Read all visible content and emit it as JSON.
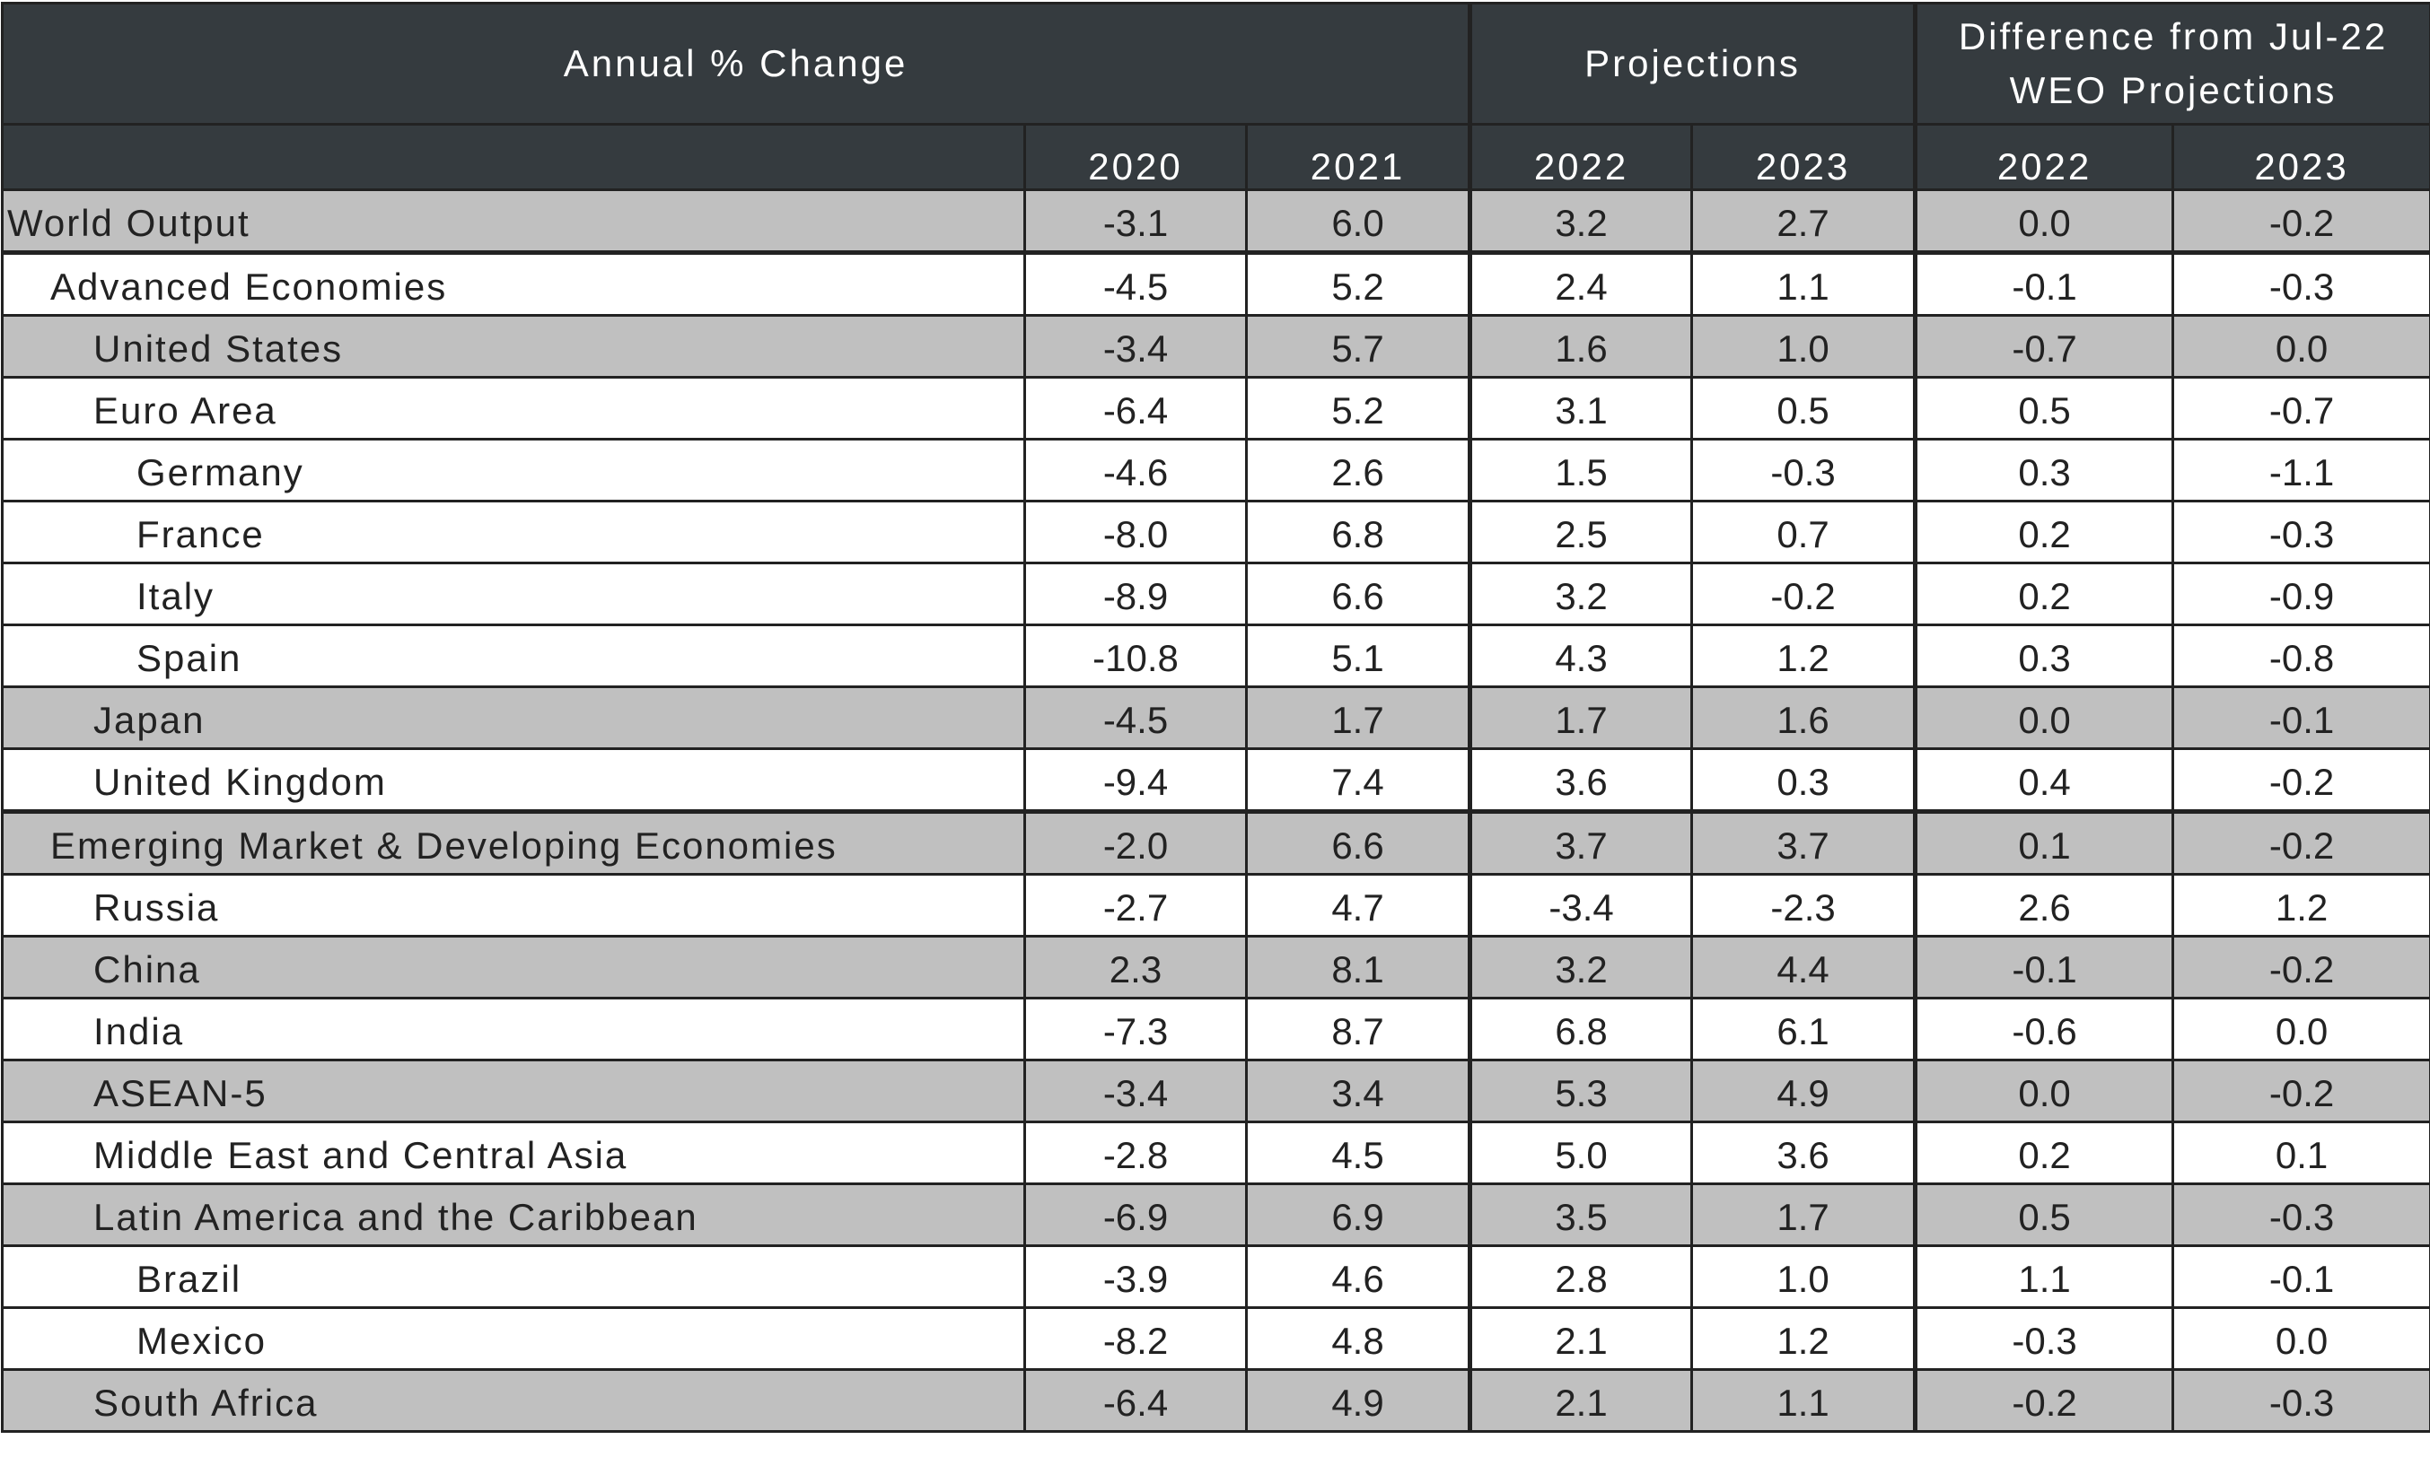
{
  "header": {
    "groups": [
      "Annual % Change",
      "Projections",
      "Difference from Jul-22 WEO Projections"
    ],
    "years": [
      "2020",
      "2021",
      "2022",
      "2023",
      "2022",
      "2023"
    ]
  },
  "table": {
    "rows": [
      [
        "World Output",
        "-3.1",
        "6.0",
        "3.2",
        "2.7",
        "0.0",
        "-0.2"
      ],
      [
        "Advanced Economies",
        "-4.5",
        "5.2",
        "2.4",
        "1.1",
        "-0.1",
        "-0.3"
      ],
      [
        "United States",
        "-3.4",
        "5.7",
        "1.6",
        "1.0",
        "-0.7",
        "0.0"
      ],
      [
        "Euro Area",
        "-6.4",
        "5.2",
        "3.1",
        "0.5",
        "0.5",
        "-0.7"
      ],
      [
        "Germany",
        "-4.6",
        "2.6",
        "1.5",
        "-0.3",
        "0.3",
        "-1.1"
      ],
      [
        "France",
        "-8.0",
        "6.8",
        "2.5",
        "0.7",
        "0.2",
        "-0.3"
      ],
      [
        "Italy",
        "-8.9",
        "6.6",
        "3.2",
        "-0.2",
        "0.2",
        "-0.9"
      ],
      [
        "Spain",
        "-10.8",
        "5.1",
        "4.3",
        "1.2",
        "0.3",
        "-0.8"
      ],
      [
        "Japan",
        "-4.5",
        "1.7",
        "1.7",
        "1.6",
        "0.0",
        "-0.1"
      ],
      [
        "United Kingdom",
        "-9.4",
        "7.4",
        "3.6",
        "0.3",
        "0.4",
        "-0.2"
      ],
      [
        "Emerging Market & Developing Economies",
        "-2.0",
        "6.6",
        "3.7",
        "3.7",
        "0.1",
        "-0.2"
      ],
      [
        "Russia",
        "-2.7",
        "4.7",
        "-3.4",
        "-2.3",
        "2.6",
        "1.2"
      ],
      [
        "China",
        "2.3",
        "8.1",
        "3.2",
        "4.4",
        "-0.1",
        "-0.2"
      ],
      [
        "India",
        "-7.3",
        "8.7",
        "6.8",
        "6.1",
        "-0.6",
        "0.0"
      ],
      [
        "ASEAN-5",
        "-3.4",
        "3.4",
        "5.3",
        "4.9",
        "0.0",
        "-0.2"
      ],
      [
        "Middle East and Central Asia",
        "-2.8",
        "4.5",
        "5.0",
        "3.6",
        "0.2",
        "0.1"
      ],
      [
        "Latin America and the Caribbean",
        "-6.9",
        "6.9",
        "3.5",
        "1.7",
        "0.5",
        "-0.3"
      ],
      [
        "Brazil",
        "-3.9",
        "4.6",
        "2.8",
        "1.0",
        "1.1",
        "-0.1"
      ],
      [
        "Mexico",
        "-8.2",
        "4.8",
        "2.1",
        "1.2",
        "-0.3",
        "0.0"
      ],
      [
        "South Africa",
        "-6.4",
        "4.9",
        "2.1",
        "1.1",
        "-0.2",
        "-0.3"
      ]
    ]
  }
}
